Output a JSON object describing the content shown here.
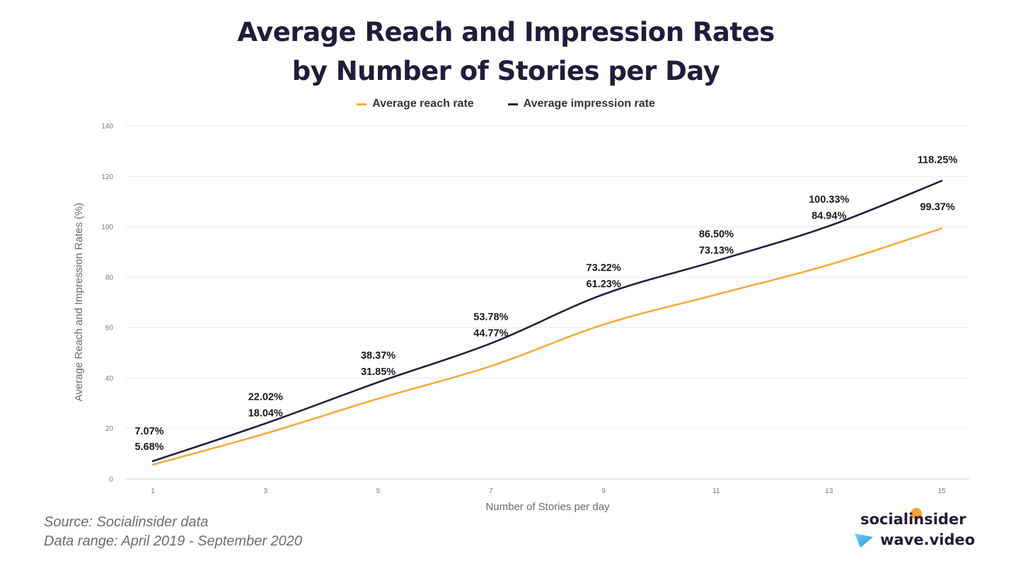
{
  "title_line1": "Average Reach and Impression Rates",
  "title_line2": "by Number of Stories per Day",
  "colors": {
    "reach": "#f5aa3c",
    "impression": "#23213d",
    "grid": "#e7e9f2",
    "axis_text": "#7a7a7a"
  },
  "chart_data": {
    "type": "line",
    "title": "Average Reach and Impression Rates by Number of Stories per Day",
    "xlabel": "Number of Stories per day",
    "ylabel": "Average Reach and Impression Rates (%)",
    "xlim": [
      0.5,
      15.5
    ],
    "ylim": [
      0,
      140
    ],
    "x_ticks": [
      1,
      3,
      5,
      7,
      9,
      11,
      13,
      15
    ],
    "y_ticks": [
      0,
      20,
      40,
      60,
      80,
      100,
      120,
      140
    ],
    "legend_position": "top",
    "series": [
      {
        "name": "Average reach rate",
        "x": [
          1,
          3,
          5,
          7,
          9,
          11,
          13,
          15
        ],
        "values": [
          5.68,
          18.04,
          31.85,
          44.77,
          61.23,
          73.13,
          84.94,
          99.37
        ],
        "labels": [
          "5.68%",
          "18.04%",
          "31.85%",
          "44.77%",
          "61.23%",
          "73.13%",
          "84.94%",
          "99.37%"
        ]
      },
      {
        "name": "Average impression rate",
        "x": [
          1,
          3,
          5,
          7,
          9,
          11,
          13,
          15
        ],
        "values": [
          7.07,
          22.02,
          38.37,
          53.78,
          73.22,
          86.5,
          100.33,
          118.25
        ],
        "labels": [
          "7.07%",
          "22.02%",
          "38.37%",
          "53.78%",
          "73.22%",
          "86.50%",
          "100.33%",
          "118.25%"
        ]
      }
    ]
  },
  "footer": {
    "source": "Source: Socialinsider data",
    "range": "Data range: April 2019 - September 2020"
  },
  "brands": {
    "socialinsider": "socialinsider",
    "wavevideo": "wave.video"
  }
}
